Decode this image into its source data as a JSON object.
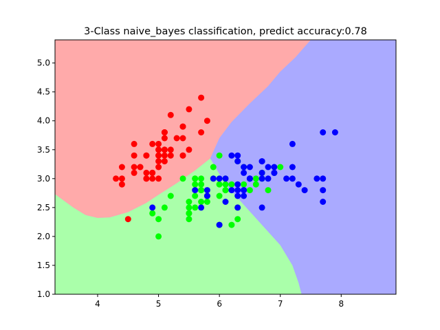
{
  "chart_data": {
    "type": "scatter",
    "title": "3-Class naive_bayes classification, predict accuracy:0.78",
    "xlabel": "",
    "ylabel": "",
    "xlim": [
      3.3,
      8.9
    ],
    "ylim": [
      1.0,
      5.4
    ],
    "x_ticks": [
      4,
      5,
      6,
      7,
      8
    ],
    "y_ticks": [
      1.0,
      1.5,
      2.0,
      2.5,
      3.0,
      3.5,
      4.0,
      4.5,
      5.0
    ],
    "x_tick_labels": [
      "4",
      "5",
      "6",
      "7",
      "8"
    ],
    "y_tick_labels": [
      "1.0",
      "1.5",
      "2.0",
      "2.5",
      "3.0",
      "3.5",
      "4.0",
      "4.5",
      "5.0"
    ],
    "grid": false,
    "legend": false,
    "region_colors": [
      "#ffaaaa",
      "#aaffaa",
      "#aaaaff"
    ],
    "point_colors": [
      "#ff0000",
      "#00ff00",
      "#0000ff"
    ],
    "decision_regions": {
      "red_green_boundary": [
        [
          3.3,
          2.73
        ],
        [
          3.6,
          2.5
        ],
        [
          3.8,
          2.37
        ],
        [
          4.0,
          2.32
        ],
        [
          4.2,
          2.33
        ],
        [
          4.5,
          2.42
        ],
        [
          4.8,
          2.58
        ],
        [
          5.0,
          2.72
        ],
        [
          5.3,
          2.92
        ],
        [
          5.6,
          3.14
        ],
        [
          5.85,
          3.35
        ]
      ],
      "red_blue_boundary": [
        [
          5.85,
          3.35
        ],
        [
          6.0,
          3.7
        ],
        [
          6.2,
          3.98
        ],
        [
          6.5,
          4.3
        ],
        [
          6.8,
          4.6
        ],
        [
          7.0,
          4.85
        ],
        [
          7.25,
          5.1
        ],
        [
          7.5,
          5.4
        ]
      ],
      "green_blue_boundary": [
        [
          5.85,
          3.35
        ],
        [
          6.1,
          2.9
        ],
        [
          6.4,
          2.55
        ],
        [
          6.7,
          2.2
        ],
        [
          7.0,
          1.85
        ],
        [
          7.2,
          1.5
        ],
        [
          7.3,
          1.2
        ],
        [
          7.35,
          1.0
        ]
      ]
    },
    "series": [
      {
        "color": "#ff0000",
        "points": [
          [
            5.1,
            3.5
          ],
          [
            4.9,
            3.0
          ],
          [
            4.7,
            3.2
          ],
          [
            4.6,
            3.1
          ],
          [
            5.0,
            3.6
          ],
          [
            5.4,
            3.9
          ],
          [
            4.6,
            3.4
          ],
          [
            5.0,
            3.4
          ],
          [
            4.4,
            2.9
          ],
          [
            4.9,
            3.1
          ],
          [
            5.4,
            3.7
          ],
          [
            4.8,
            3.4
          ],
          [
            4.8,
            3.0
          ],
          [
            4.3,
            3.0
          ],
          [
            5.8,
            4.0
          ],
          [
            5.7,
            4.4
          ],
          [
            5.4,
            3.9
          ],
          [
            5.1,
            3.5
          ],
          [
            5.7,
            3.8
          ],
          [
            5.1,
            3.8
          ],
          [
            5.4,
            3.4
          ],
          [
            5.1,
            3.7
          ],
          [
            4.6,
            3.6
          ],
          [
            5.1,
            3.3
          ],
          [
            4.8,
            3.4
          ],
          [
            5.0,
            3.0
          ],
          [
            5.0,
            3.4
          ],
          [
            5.2,
            3.5
          ],
          [
            5.2,
            3.4
          ],
          [
            4.7,
            3.2
          ],
          [
            4.8,
            3.1
          ],
          [
            5.4,
            3.4
          ],
          [
            5.2,
            4.1
          ],
          [
            5.5,
            4.2
          ],
          [
            4.9,
            3.1
          ],
          [
            5.0,
            3.2
          ],
          [
            5.5,
            3.5
          ],
          [
            4.9,
            3.6
          ],
          [
            4.4,
            3.0
          ],
          [
            5.1,
            3.4
          ],
          [
            5.0,
            3.5
          ],
          [
            4.5,
            2.3
          ],
          [
            4.4,
            3.2
          ],
          [
            5.0,
            3.5
          ],
          [
            5.1,
            3.8
          ],
          [
            4.8,
            3.0
          ],
          [
            5.1,
            3.8
          ],
          [
            4.6,
            3.2
          ],
          [
            5.3,
            3.7
          ],
          [
            5.0,
            3.3
          ]
        ]
      },
      {
        "color": "#00ff00",
        "points": [
          [
            7.0,
            3.2
          ],
          [
            6.4,
            3.2
          ],
          [
            6.9,
            3.1
          ],
          [
            5.5,
            2.3
          ],
          [
            6.5,
            2.8
          ],
          [
            5.7,
            2.8
          ],
          [
            6.3,
            3.3
          ],
          [
            4.9,
            2.4
          ],
          [
            6.6,
            2.9
          ],
          [
            5.2,
            2.7
          ],
          [
            5.0,
            2.0
          ],
          [
            5.9,
            3.0
          ],
          [
            6.0,
            2.2
          ],
          [
            6.1,
            2.9
          ],
          [
            5.6,
            2.9
          ],
          [
            6.7,
            3.1
          ],
          [
            5.6,
            3.0
          ],
          [
            5.8,
            2.7
          ],
          [
            6.2,
            2.2
          ],
          [
            5.6,
            2.5
          ],
          [
            5.9,
            3.2
          ],
          [
            6.1,
            2.8
          ],
          [
            6.3,
            2.5
          ],
          [
            6.1,
            2.8
          ],
          [
            6.4,
            2.9
          ],
          [
            6.6,
            3.0
          ],
          [
            6.8,
            2.8
          ],
          [
            6.7,
            3.0
          ],
          [
            6.0,
            2.9
          ],
          [
            5.7,
            2.6
          ],
          [
            5.5,
            2.4
          ],
          [
            5.5,
            2.4
          ],
          [
            5.8,
            2.7
          ],
          [
            6.0,
            2.7
          ],
          [
            5.4,
            3.0
          ],
          [
            6.0,
            3.4
          ],
          [
            6.7,
            3.1
          ],
          [
            6.3,
            2.3
          ],
          [
            5.6,
            3.0
          ],
          [
            5.5,
            2.5
          ],
          [
            5.5,
            2.6
          ],
          [
            6.1,
            3.0
          ],
          [
            5.8,
            2.6
          ],
          [
            5.0,
            2.3
          ],
          [
            5.6,
            2.7
          ],
          [
            5.7,
            3.0
          ],
          [
            5.7,
            2.9
          ],
          [
            6.2,
            2.9
          ],
          [
            5.1,
            2.5
          ],
          [
            5.7,
            2.8
          ]
        ]
      },
      {
        "color": "#0000ff",
        "points": [
          [
            6.3,
            3.3
          ],
          [
            5.8,
            2.7
          ],
          [
            7.1,
            3.0
          ],
          [
            6.3,
            2.9
          ],
          [
            6.5,
            3.0
          ],
          [
            7.6,
            3.0
          ],
          [
            4.9,
            2.5
          ],
          [
            7.3,
            2.9
          ],
          [
            6.7,
            2.5
          ],
          [
            7.2,
            3.6
          ],
          [
            6.5,
            3.2
          ],
          [
            6.4,
            2.7
          ],
          [
            6.8,
            3.0
          ],
          [
            5.7,
            2.5
          ],
          [
            5.8,
            2.8
          ],
          [
            6.4,
            3.2
          ],
          [
            6.5,
            3.0
          ],
          [
            7.7,
            3.8
          ],
          [
            7.7,
            2.6
          ],
          [
            6.0,
            2.2
          ],
          [
            6.9,
            3.2
          ],
          [
            5.6,
            2.8
          ],
          [
            7.7,
            2.8
          ],
          [
            6.3,
            2.7
          ],
          [
            6.7,
            3.3
          ],
          [
            7.2,
            3.2
          ],
          [
            6.2,
            2.8
          ],
          [
            6.1,
            3.0
          ],
          [
            6.4,
            2.8
          ],
          [
            7.2,
            3.0
          ],
          [
            7.4,
            2.8
          ],
          [
            7.9,
            3.8
          ],
          [
            6.4,
            2.8
          ],
          [
            6.3,
            2.8
          ],
          [
            6.1,
            2.6
          ],
          [
            7.7,
            3.0
          ],
          [
            6.3,
            3.4
          ],
          [
            6.4,
            3.1
          ],
          [
            6.0,
            3.0
          ],
          [
            6.9,
            3.1
          ],
          [
            6.7,
            3.1
          ],
          [
            6.9,
            3.1
          ],
          [
            5.8,
            2.7
          ],
          [
            6.8,
            3.2
          ],
          [
            6.7,
            3.3
          ],
          [
            6.7,
            3.0
          ],
          [
            6.3,
            2.5
          ],
          [
            6.5,
            3.0
          ],
          [
            6.2,
            3.4
          ],
          [
            5.9,
            3.0
          ]
        ]
      }
    ]
  }
}
